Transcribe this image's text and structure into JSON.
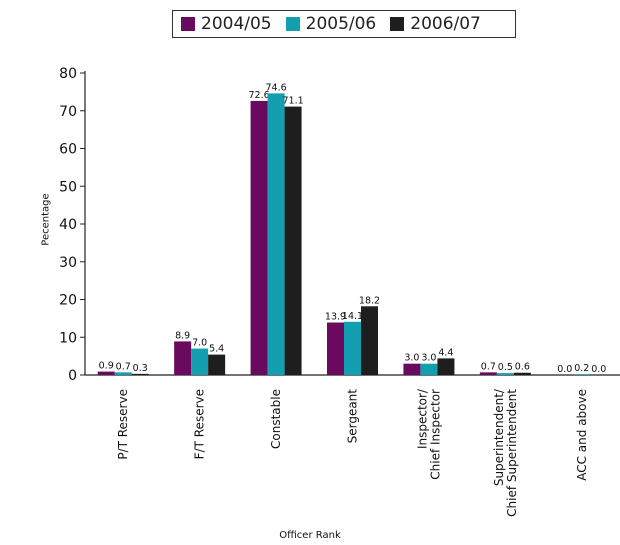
{
  "chart_data": {
    "type": "bar",
    "categories": [
      "P/T Reserve",
      "F/T Reserve",
      "Constable",
      "Sergeant",
      "Inspector/\nChief Inspector",
      "Superintendent/\nChief Superintendent",
      "ACC and above"
    ],
    "series": [
      {
        "name": "2004/05",
        "values": [
          0.9,
          8.9,
          72.6,
          13.9,
          3.0,
          0.7,
          0.0
        ]
      },
      {
        "name": "2005/06",
        "values": [
          0.7,
          7.0,
          74.6,
          14.1,
          3.0,
          0.5,
          0.2
        ]
      },
      {
        "name": "2006/07",
        "values": [
          0.3,
          5.4,
          71.1,
          18.2,
          4.4,
          0.6,
          0.0
        ]
      }
    ],
    "value_labels": [
      [
        "0.9",
        "8.9",
        "72.6",
        "13.9",
        "3.0",
        "0.7",
        "0.0"
      ],
      [
        "0.7",
        "7.0",
        "74.6",
        "14.1",
        "3.0",
        "0.5",
        "0.2"
      ],
      [
        "0.3",
        "5.4",
        "71.1",
        "18.2",
        "4.4",
        "0.6",
        "0.0"
      ]
    ],
    "ylim": [
      0,
      80
    ],
    "yticks": [
      0,
      10,
      20,
      30,
      40,
      50,
      60,
      70,
      80
    ],
    "xlabel": "Officer Rank",
    "ylabel": "Pecentage",
    "legend_position": "top",
    "grid": false,
    "colors": [
      "#6a0a5e",
      "#139fb0",
      "#1e1e1e"
    ]
  }
}
